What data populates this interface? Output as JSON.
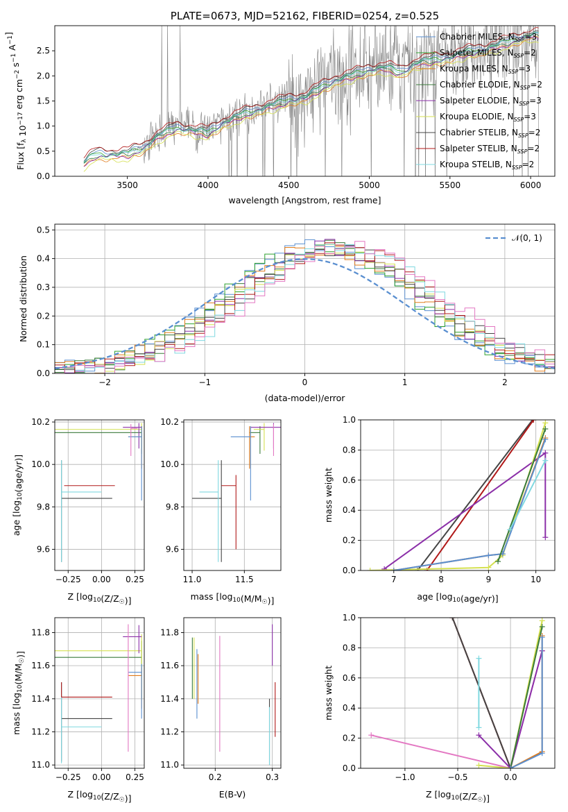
{
  "chart_data": [
    {
      "type": "line",
      "title": "PLATE=0673, MJD=52162, FIBERID=0254, z=0.525",
      "xlabel": "wavelength [Angstrom, rest frame]",
      "ylabel": "Flux [f_λ 10^-17 erg cm^-2 s^-1 A^-1]",
      "xlim": [
        3050,
        6150
      ],
      "ylim": [
        0,
        3.0
      ],
      "xticks": [
        "3500",
        "4000",
        "4500",
        "5000",
        "5500",
        "6000"
      ],
      "yticks": [
        "0.0",
        "0.5",
        "1.0",
        "1.5",
        "2.0",
        "2.5"
      ],
      "data_series": {
        "name": "data",
        "color": "#808080",
        "x": [
          3230,
          3300,
          3400,
          3500,
          3600,
          3700,
          3800,
          3900,
          4000,
          4100,
          4200,
          4300,
          4400,
          4500,
          4600,
          4700,
          4800,
          4900,
          5000,
          5100,
          5200,
          5300,
          5400,
          5500,
          5600,
          5700,
          5800,
          5900,
          6000
        ],
        "y": [
          0.3,
          0.47,
          0.46,
          0.48,
          0.6,
          0.85,
          1.0,
          0.95,
          0.9,
          1.1,
          1.25,
          1.35,
          1.45,
          1.55,
          1.6,
          1.8,
          1.95,
          2.05,
          2.15,
          2.2,
          2.1,
          2.3,
          2.35,
          2.4,
          2.5,
          2.55,
          2.65,
          2.75,
          2.85
        ]
      },
      "models": [
        {
          "name": "Chabrier MILES, N_SSP=3",
          "color": "#5a8fd0",
          "offset": 0.0
        },
        {
          "name": "Salpeter MILES, N_SSP=2",
          "color": "#2ca02c",
          "offset": -0.02
        },
        {
          "name": "Kroupa MILES, N_SSP=3",
          "color": "#e07b1a",
          "offset": -0.12
        },
        {
          "name": "Chabrier ELODIE, N_SSP=2",
          "color": "#3a7a3a",
          "offset": -0.05
        },
        {
          "name": "Salpeter ELODIE, N_SSP=3",
          "color": "#8b2fa8",
          "offset": -0.08
        },
        {
          "name": "Kroupa ELODIE, N_SSP=3",
          "color": "#d4e050",
          "offset": -0.15
        },
        {
          "name": "Chabrier STELIB, N_SSP=2",
          "color": "#444444",
          "offset": 0.05
        },
        {
          "name": "Salpeter STELIB, N_SSP=2",
          "color": "#b01818",
          "offset": 0.08
        },
        {
          "name": "Kroupa STELIB, N_SSP=2",
          "color": "#7fd8e0",
          "offset": -0.03
        }
      ],
      "legend_position": "top-right"
    },
    {
      "type": "histogram",
      "xlabel": "(data-model)/error",
      "ylabel": "Normed distribution",
      "xlim": [
        -2.5,
        2.5
      ],
      "ylim": [
        0,
        0.52
      ],
      "xticks": [
        "−2",
        "−1",
        "0",
        "1",
        "2"
      ],
      "yticks": [
        "0.0",
        "0.1",
        "0.2",
        "0.3",
        "0.4",
        "0.5"
      ],
      "grid": true,
      "gaussian_label": "𝒩(0, 1)",
      "gaussian_color": "#5a8fd0",
      "legend_position": "top-right"
    },
    {
      "type": "scatter",
      "xlabel": "Z [log10(Z/Z☉)]",
      "ylabel": "age [log10(age/yr)]",
      "xlim": [
        -0.35,
        0.32
      ],
      "ylim": [
        9.5,
        10.21
      ],
      "xticks": [
        "−0.25",
        "0.00",
        "0.25"
      ],
      "yticks": [
        "9.6",
        "9.8",
        "10.0",
        "10.2"
      ],
      "points": [
        {
          "x": -0.3,
          "y": 9.84,
          "xerr": [
            0.0,
            0.38
          ],
          "yerr": [
            0.3,
            0.18
          ],
          "color": "#444444"
        },
        {
          "x": -0.3,
          "y": 9.87,
          "xerr": [
            0.0,
            0.3
          ],
          "yerr": [
            0.33,
            0.15
          ],
          "color": "#7fd8e0"
        },
        {
          "x": -0.28,
          "y": 9.9,
          "xerr": [
            0.0,
            0.38
          ],
          "yerr": [
            0.0,
            0.0
          ],
          "color": "#b01818"
        },
        {
          "x": 0.3,
          "y": 10.15,
          "xerr": [
            0.65,
            0.0
          ],
          "yerr": [
            0.1,
            0.03
          ],
          "color": "#3a7a3a"
        },
        {
          "x": 0.3,
          "y": 10.165,
          "xerr": [
            0.65,
            0.0
          ],
          "yerr": [
            0.1,
            0.03
          ],
          "color": "#d4e050"
        },
        {
          "x": 0.28,
          "y": 10.175,
          "xerr": [
            0.12,
            0.02
          ],
          "yerr": [
            0.1,
            0.02
          ],
          "color": "#8b2fa8"
        },
        {
          "x": 0.3,
          "y": 10.13,
          "xerr": [
            0.1,
            0.0
          ],
          "yerr": [
            0.15,
            0.05
          ],
          "color": "#e07b1a"
        },
        {
          "x": 0.3,
          "y": 10.13,
          "xerr": [
            0.1,
            0.0
          ],
          "yerr": [
            0.3,
            0.05
          ],
          "color": "#5a8fd0"
        },
        {
          "x": 0.22,
          "y": 10.17,
          "xerr": [
            0.0,
            0.05
          ],
          "yerr": [
            0.13,
            0.02
          ],
          "color": "#e377c2"
        }
      ]
    },
    {
      "type": "scatter",
      "xlabel": "mass [log10(M/M☉)]",
      "ylabel": "",
      "xlim": [
        10.92,
        11.85
      ],
      "ylim": [
        9.5,
        10.21
      ],
      "xticks": [
        "11.0",
        "11.5"
      ],
      "yticks": [
        "9.6",
        "9.8",
        "10.0",
        "10.2"
      ],
      "points": [
        {
          "x": 11.28,
          "y": 9.84,
          "xerr": [
            0.28,
            0.0
          ],
          "yerr": [
            0.3,
            0.18
          ],
          "color": "#444444"
        },
        {
          "x": 11.25,
          "y": 9.87,
          "xerr": [
            0.18,
            0.0
          ],
          "yerr": [
            0.33,
            0.15
          ],
          "color": "#7fd8e0"
        },
        {
          "x": 11.42,
          "y": 9.9,
          "xerr": [
            0.14,
            0.0
          ],
          "yerr": [
            0.3,
            0.05
          ],
          "color": "#b01818"
        },
        {
          "x": 11.65,
          "y": 10.15,
          "xerr": [
            0.1,
            0.0
          ],
          "yerr": [
            0.1,
            0.03
          ],
          "color": "#3a7a3a"
        },
        {
          "x": 11.69,
          "y": 10.165,
          "xerr": [
            0.1,
            0.0
          ],
          "yerr": [
            0.1,
            0.03
          ],
          "color": "#d4e050"
        },
        {
          "x": 11.78,
          "y": 10.175,
          "xerr": [
            0.22,
            0.07
          ],
          "yerr": [
            0.1,
            0.02
          ],
          "color": "#8b2fa8"
        },
        {
          "x": 11.55,
          "y": 10.13,
          "xerr": [
            0.0,
            0.05
          ],
          "yerr": [
            0.15,
            0.05
          ],
          "color": "#e07b1a"
        },
        {
          "x": 11.56,
          "y": 10.13,
          "xerr": [
            0.19,
            0.0
          ],
          "yerr": [
            0.3,
            0.05
          ],
          "color": "#5a8fd0"
        },
        {
          "x": 11.78,
          "y": 10.17,
          "xerr": [
            0.0,
            0.0
          ],
          "yerr": [
            0.13,
            0.02
          ],
          "color": "#e377c2"
        }
      ]
    },
    {
      "type": "line",
      "xlabel": "age [log10(age/yr)]",
      "ylabel": "mass weight",
      "xlim": [
        6.3,
        10.4
      ],
      "ylim": [
        0,
        1.0
      ],
      "xticks": [
        "7",
        "8",
        "9",
        "10"
      ],
      "yticks": [
        "0.0",
        "0.2",
        "0.4",
        "0.6",
        "0.8",
        "1.0"
      ],
      "grid": true,
      "series": [
        {
          "color": "#444444",
          "x": [
            7.5,
            9.93
          ],
          "y": [
            0.0,
            1.0
          ]
        },
        {
          "color": "#b01818",
          "x": [
            7.7,
            9.95
          ],
          "y": [
            0.0,
            1.0
          ]
        },
        {
          "color": "#8b2fa8",
          "x": [
            6.8,
            10.2,
            10.2
          ],
          "y": [
            0.01,
            0.78,
            0.22
          ]
        },
        {
          "color": "#d4e050",
          "x": [
            6.5,
            9.0,
            9.3,
            10.2
          ],
          "y": [
            0.0,
            0.02,
            0.1,
            0.98
          ]
        },
        {
          "color": "#e07b1a",
          "x": [
            7.0,
            9.0,
            9.3,
            10.2
          ],
          "y": [
            0.0,
            0.1,
            0.11,
            0.88
          ]
        },
        {
          "color": "#5a8fd0",
          "x": [
            7.0,
            9.0,
            9.3,
            10.2
          ],
          "y": [
            0.0,
            0.1,
            0.11,
            0.87
          ]
        },
        {
          "color": "#3a7a3a",
          "x": [
            9.2,
            10.2
          ],
          "y": [
            0.06,
            0.94
          ]
        },
        {
          "color": "#7fd8e0",
          "x": [
            9.45,
            10.2
          ],
          "y": [
            0.27,
            0.73
          ]
        }
      ]
    },
    {
      "type": "scatter",
      "xlabel": "Z [log10(Z/Z☉)]",
      "ylabel": "mass [log10(M/M☉)]",
      "xlim": [
        -0.35,
        0.32
      ],
      "ylim": [
        10.98,
        11.89
      ],
      "xticks": [
        "−0.25",
        "0.00",
        "0.25"
      ],
      "yticks": [
        "11.0",
        "11.2",
        "11.4",
        "11.6",
        "11.8"
      ],
      "points": [
        {
          "x": -0.3,
          "y": 11.28,
          "xerr": [
            0.0,
            0.38
          ],
          "yerr": [
            0.26,
            0.22
          ],
          "color": "#444444"
        },
        {
          "x": -0.3,
          "y": 11.23,
          "xerr": [
            0.0,
            0.3
          ],
          "yerr": [
            0.22,
            0.27
          ],
          "color": "#7fd8e0"
        },
        {
          "x": -0.3,
          "y": 11.41,
          "xerr": [
            0.0,
            0.38
          ],
          "yerr": [
            0.0,
            0.09
          ],
          "color": "#b01818"
        },
        {
          "x": 0.3,
          "y": 11.65,
          "xerr": [
            0.65,
            0.0
          ],
          "yerr": [
            0.25,
            0.1
          ],
          "color": "#3a7a3a"
        },
        {
          "x": 0.3,
          "y": 11.69,
          "xerr": [
            0.65,
            0.0
          ],
          "yerr": [
            0.3,
            0.1
          ],
          "color": "#d4e050"
        },
        {
          "x": 0.28,
          "y": 11.775,
          "xerr": [
            0.12,
            0.02
          ],
          "yerr": [
            0.1,
            0.07
          ],
          "color": "#8b2fa8"
        },
        {
          "x": 0.3,
          "y": 11.54,
          "xerr": [
            0.1,
            0.0
          ],
          "yerr": [
            0.2,
            0.05
          ],
          "color": "#e07b1a"
        },
        {
          "x": 0.3,
          "y": 11.56,
          "xerr": [
            0.1,
            0.0
          ],
          "yerr": [
            0.28,
            0.05
          ],
          "color": "#5a8fd0"
        },
        {
          "x": 0.2,
          "y": 11.5,
          "xerr": [
            0.0,
            0.0
          ],
          "yerr": [
            0.42,
            0.35
          ],
          "color": "#e377c2"
        }
      ]
    },
    {
      "type": "scatter",
      "xlabel": "E(B-V)",
      "ylabel": "",
      "xlim": [
        0.145,
        0.315
      ],
      "ylim": [
        10.98,
        11.89
      ],
      "xticks": [
        "0.2",
        "0.3"
      ],
      "yticks": [
        "11.0",
        "11.2",
        "11.4",
        "11.6",
        "11.8"
      ],
      "points": [
        {
          "x": 0.16,
          "y": 11.65,
          "xerr": [
            0,
            0
          ],
          "yerr": [
            0.25,
            0.12
          ],
          "color": "#3a7a3a"
        },
        {
          "x": 0.163,
          "y": 11.6,
          "xerr": [
            0,
            0
          ],
          "yerr": [
            0.2,
            0.17
          ],
          "color": "#d4e050"
        },
        {
          "x": 0.168,
          "y": 11.5,
          "xerr": [
            0,
            0
          ],
          "yerr": [
            0.22,
            0.2
          ],
          "color": "#5a8fd0"
        },
        {
          "x": 0.17,
          "y": 11.55,
          "xerr": [
            0,
            0
          ],
          "yerr": [
            0.18,
            0.12
          ],
          "color": "#e07b1a"
        },
        {
          "x": 0.208,
          "y": 11.5,
          "xerr": [
            0,
            0
          ],
          "yerr": [
            0.42,
            0.28
          ],
          "color": "#e377c2"
        },
        {
          "x": 0.295,
          "y": 11.2,
          "xerr": [
            0,
            0
          ],
          "yerr": [
            0.2,
            0.2
          ],
          "color": "#444444"
        },
        {
          "x": 0.295,
          "y": 11.15,
          "xerr": [
            0,
            0
          ],
          "yerr": [
            0.15,
            0.2
          ],
          "color": "#7fd8e0"
        },
        {
          "x": 0.3,
          "y": 11.75,
          "xerr": [
            0,
            0
          ],
          "yerr": [
            0.15,
            0.1
          ],
          "color": "#8b2fa8"
        },
        {
          "x": 0.305,
          "y": 11.35,
          "xerr": [
            0,
            0
          ],
          "yerr": [
            0.18,
            0.15
          ],
          "color": "#b01818"
        }
      ]
    },
    {
      "type": "line",
      "xlabel": "Z [log10(Z/Z☉)]",
      "ylabel": "mass weight",
      "xlim": [
        -1.42,
        0.42
      ],
      "ylim": [
        0,
        1.0
      ],
      "xticks": [
        "−1.0",
        "−0.5",
        "0.0"
      ],
      "yticks": [
        "0.0",
        "0.2",
        "0.4",
        "0.6",
        "0.8",
        "1.0"
      ],
      "grid": true,
      "series": [
        {
          "color": "#e377c2",
          "x": [
            -1.32,
            0.0,
            0.3
          ],
          "y": [
            0.22,
            0.0,
            0.78
          ]
        },
        {
          "color": "#b01818",
          "x": [
            -0.55,
            0.0
          ],
          "y": [
            1.0,
            0.0
          ]
        },
        {
          "color": "#444444",
          "x": [
            -0.55,
            0.0
          ],
          "y": [
            1.0,
            0.0
          ]
        },
        {
          "color": "#7fd8e0",
          "x": [
            -0.3,
            -0.3
          ],
          "y": [
            0.27,
            0.73
          ]
        },
        {
          "color": "#8b2fa8",
          "x": [
            -0.3,
            0.0,
            0.3
          ],
          "y": [
            0.22,
            0.0,
            0.78
          ]
        },
        {
          "color": "#d4e050",
          "x": [
            -0.3,
            0.0,
            0.3
          ],
          "y": [
            0.02,
            0.0,
            0.98
          ]
        },
        {
          "color": "#3a7a3a",
          "x": [
            0.0,
            0.3
          ],
          "y": [
            0.0,
            0.94
          ]
        },
        {
          "color": "#e07b1a",
          "x": [
            0.0,
            0.3,
            0.3
          ],
          "y": [
            0.0,
            0.11,
            0.88
          ]
        },
        {
          "color": "#5a8fd0",
          "x": [
            0.0,
            0.3,
            0.3
          ],
          "y": [
            0.0,
            0.1,
            0.87
          ]
        }
      ]
    }
  ]
}
